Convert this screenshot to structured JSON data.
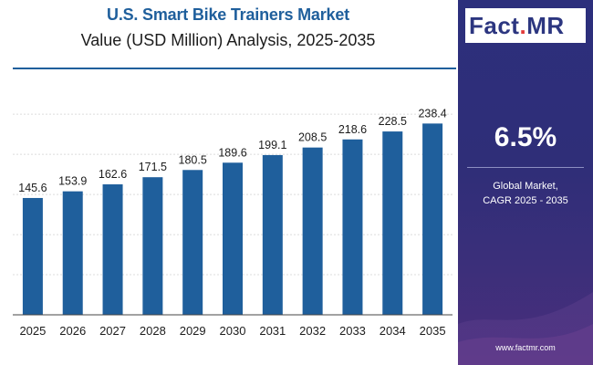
{
  "header": {
    "title": "U.S. Smart Bike Trainers Market",
    "subtitle": "Value (USD Million) Analysis, 2025-2035"
  },
  "colors": {
    "bar": "#1f5f9c",
    "title": "#1f5f9c",
    "panel": "#2c2f7c",
    "grid": "#dcdcdc"
  },
  "side_panel": {
    "logo_main": "Fact",
    "logo_dot": ".",
    "logo_suffix": "MR",
    "cagr_value": "6.5%",
    "cagr_label_line1": "Global Market,",
    "cagr_label_line2": "CAGR 2025 - 2035",
    "website": "www.factmr.com"
  },
  "chart_data": {
    "type": "bar",
    "categories": [
      "2025",
      "2026",
      "2027",
      "2028",
      "2029",
      "2030",
      "2031",
      "2032",
      "2033",
      "2034",
      "2035"
    ],
    "values": [
      145.6,
      153.9,
      162.6,
      171.5,
      180.5,
      189.6,
      199.1,
      208.5,
      218.6,
      228.5,
      238.4
    ],
    "labels": [
      "145.6",
      "153.9",
      "162.6",
      "171.5",
      "180.5",
      "189.6",
      "199.1",
      "208.5",
      "218.6",
      "228.5",
      "238.4"
    ],
    "title": "U.S. Smart Bike Trainers Market",
    "subtitle": "Value (USD Million) Analysis, 2025-2035",
    "xlabel": "",
    "ylabel": "",
    "ylim": [
      0,
      290
    ],
    "grid": true
  }
}
